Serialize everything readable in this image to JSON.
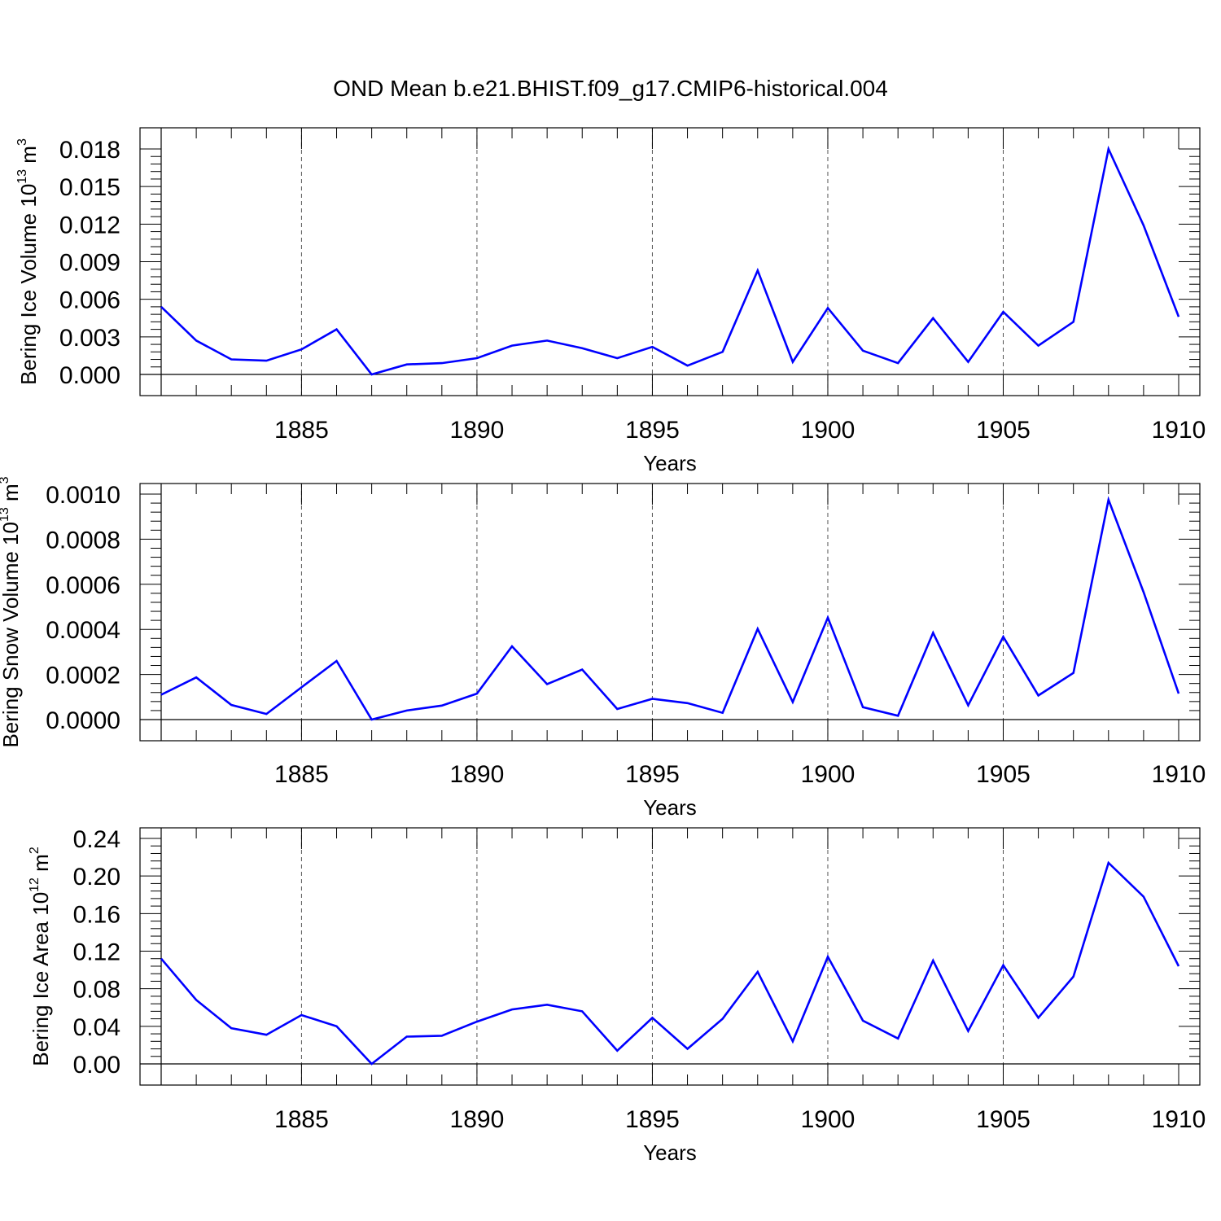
{
  "title": "OND Mean b.e21.BHIST.f09_g17.CMIP6-historical.004",
  "line_color": "#0000FF",
  "chart_data": [
    {
      "type": "line",
      "title": "",
      "xlabel": "Years",
      "ylabel_main": "Bering Ice Volume 10",
      "ylabel_exp": "13",
      "ylabel_unit": " m",
      "ylabel_unit_exp": "3",
      "xlim": [
        1881,
        1910
      ],
      "ylim": [
        0,
        0.018
      ],
      "grid": "vertical dashed at labeled x ticks",
      "x_ticks": [
        1885,
        1890,
        1895,
        1900,
        1905,
        1910
      ],
      "y_ticks": [
        "0.000",
        "0.003",
        "0.006",
        "0.009",
        "0.012",
        "0.015",
        "0.018"
      ],
      "series": [
        {
          "x": [
            1881,
            1882,
            1883,
            1884,
            1885,
            1886,
            1887,
            1888,
            1889,
            1890,
            1891,
            1892,
            1893,
            1894,
            1895,
            1896,
            1897,
            1898,
            1899,
            1900,
            1901,
            1902,
            1903,
            1904,
            1905,
            1906,
            1907,
            1908,
            1909,
            1910
          ],
          "values": [
            0.0054,
            0.0027,
            0.0012,
            0.0011,
            0.002,
            0.0036,
            0.0,
            0.0008,
            0.0009,
            0.0013,
            0.0023,
            0.0027,
            0.0021,
            0.0013,
            0.0022,
            0.0007,
            0.0018,
            0.0083,
            0.001,
            0.0053,
            0.0019,
            0.0009,
            0.0045,
            0.001,
            0.005,
            0.0023,
            0.0042,
            0.018,
            0.0119,
            0.0046
          ]
        }
      ]
    },
    {
      "type": "line",
      "title": "",
      "xlabel": "Years",
      "ylabel_main": "Bering Snow Volume 10",
      "ylabel_exp": "13",
      "ylabel_unit": " m",
      "ylabel_unit_exp": "3",
      "xlim": [
        1881,
        1910
      ],
      "ylim": [
        0,
        0.001
      ],
      "grid": "vertical dashed at labeled x ticks",
      "x_ticks": [
        1885,
        1890,
        1895,
        1900,
        1905,
        1910
      ],
      "y_ticks": [
        "0.0000",
        "0.0002",
        "0.0004",
        "0.0006",
        "0.0008",
        "0.0010"
      ],
      "series": [
        {
          "x": [
            1881,
            1882,
            1883,
            1884,
            1885,
            1886,
            1887,
            1888,
            1889,
            1890,
            1891,
            1892,
            1893,
            1894,
            1895,
            1896,
            1897,
            1898,
            1899,
            1900,
            1901,
            1902,
            1903,
            1904,
            1905,
            1906,
            1907,
            1908,
            1909,
            1910
          ],
          "values": [
            0.00011,
            0.000187,
            6.5e-05,
            2.5e-05,
            0.000143,
            0.00026,
            0.0,
            4e-05,
            6.2e-05,
            0.000115,
            0.000325,
            0.000157,
            0.000222,
            4.7e-05,
            9.2e-05,
            7.3e-05,
            3e-05,
            0.000402,
            7.8e-05,
            0.000452,
            5.5e-05,
            1.7e-05,
            0.000385,
            6.3e-05,
            0.000367,
            0.000107,
            0.000207,
            0.000975,
            0.000565,
            0.000115
          ]
        }
      ]
    },
    {
      "type": "line",
      "title": "",
      "xlabel": "Years",
      "ylabel_main": "Bering Ice Area 10",
      "ylabel_exp": "12",
      "ylabel_unit": " m",
      "ylabel_unit_exp": "2",
      "xlim": [
        1881,
        1910
      ],
      "ylim": [
        0,
        0.24
      ],
      "grid": "vertical dashed at labeled x ticks",
      "x_ticks": [
        1885,
        1890,
        1895,
        1900,
        1905,
        1910
      ],
      "y_ticks": [
        "0.00",
        "0.04",
        "0.08",
        "0.12",
        "0.16",
        "0.20",
        "0.24"
      ],
      "series": [
        {
          "x": [
            1881,
            1882,
            1883,
            1884,
            1885,
            1886,
            1887,
            1888,
            1889,
            1890,
            1891,
            1892,
            1893,
            1894,
            1895,
            1896,
            1897,
            1898,
            1899,
            1900,
            1901,
            1902,
            1903,
            1904,
            1905,
            1906,
            1907,
            1908,
            1909,
            1910
          ],
          "values": [
            0.112,
            0.068,
            0.038,
            0.031,
            0.052,
            0.04,
            0.0,
            0.029,
            0.03,
            0.045,
            0.058,
            0.063,
            0.056,
            0.014,
            0.049,
            0.016,
            0.048,
            0.098,
            0.024,
            0.114,
            0.046,
            0.027,
            0.11,
            0.035,
            0.105,
            0.049,
            0.093,
            0.214,
            0.178,
            0.104
          ]
        }
      ]
    }
  ]
}
